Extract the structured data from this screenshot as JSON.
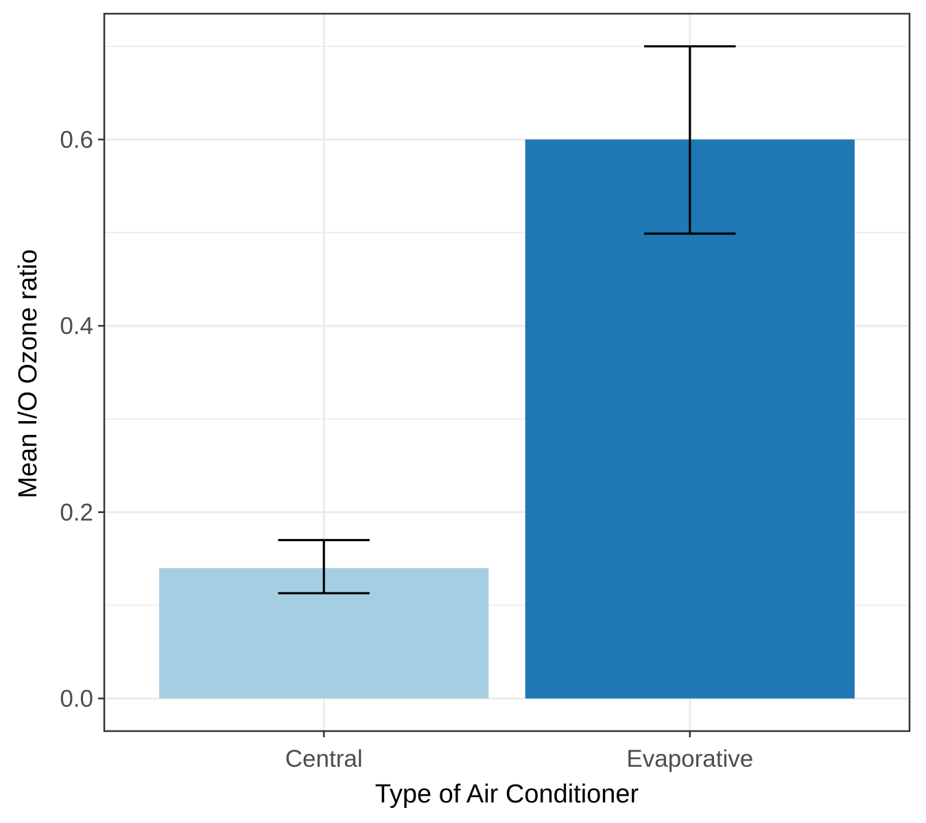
{
  "chart_data": {
    "type": "bar",
    "categories": [
      "Central",
      "Evaporative"
    ],
    "values": [
      0.14,
      0.6
    ],
    "error_low": [
      0.113,
      0.499
    ],
    "error_high": [
      0.17,
      0.7
    ],
    "colors": [
      "#a6cee3",
      "#1f78b4"
    ],
    "title": "",
    "xlabel": "Type of Air Conditioner",
    "ylabel": "Mean I/O Ozone ratio",
    "ylim": [
      -0.035,
      0.735
    ],
    "yticks": [
      "0.0",
      "0.2",
      "0.4",
      "0.6"
    ],
    "ytick_values": [
      0.0,
      0.2,
      0.4,
      0.6
    ],
    "yminor_values": [
      0.1,
      0.3,
      0.5,
      0.7
    ],
    "grid": true,
    "legend": "none"
  }
}
